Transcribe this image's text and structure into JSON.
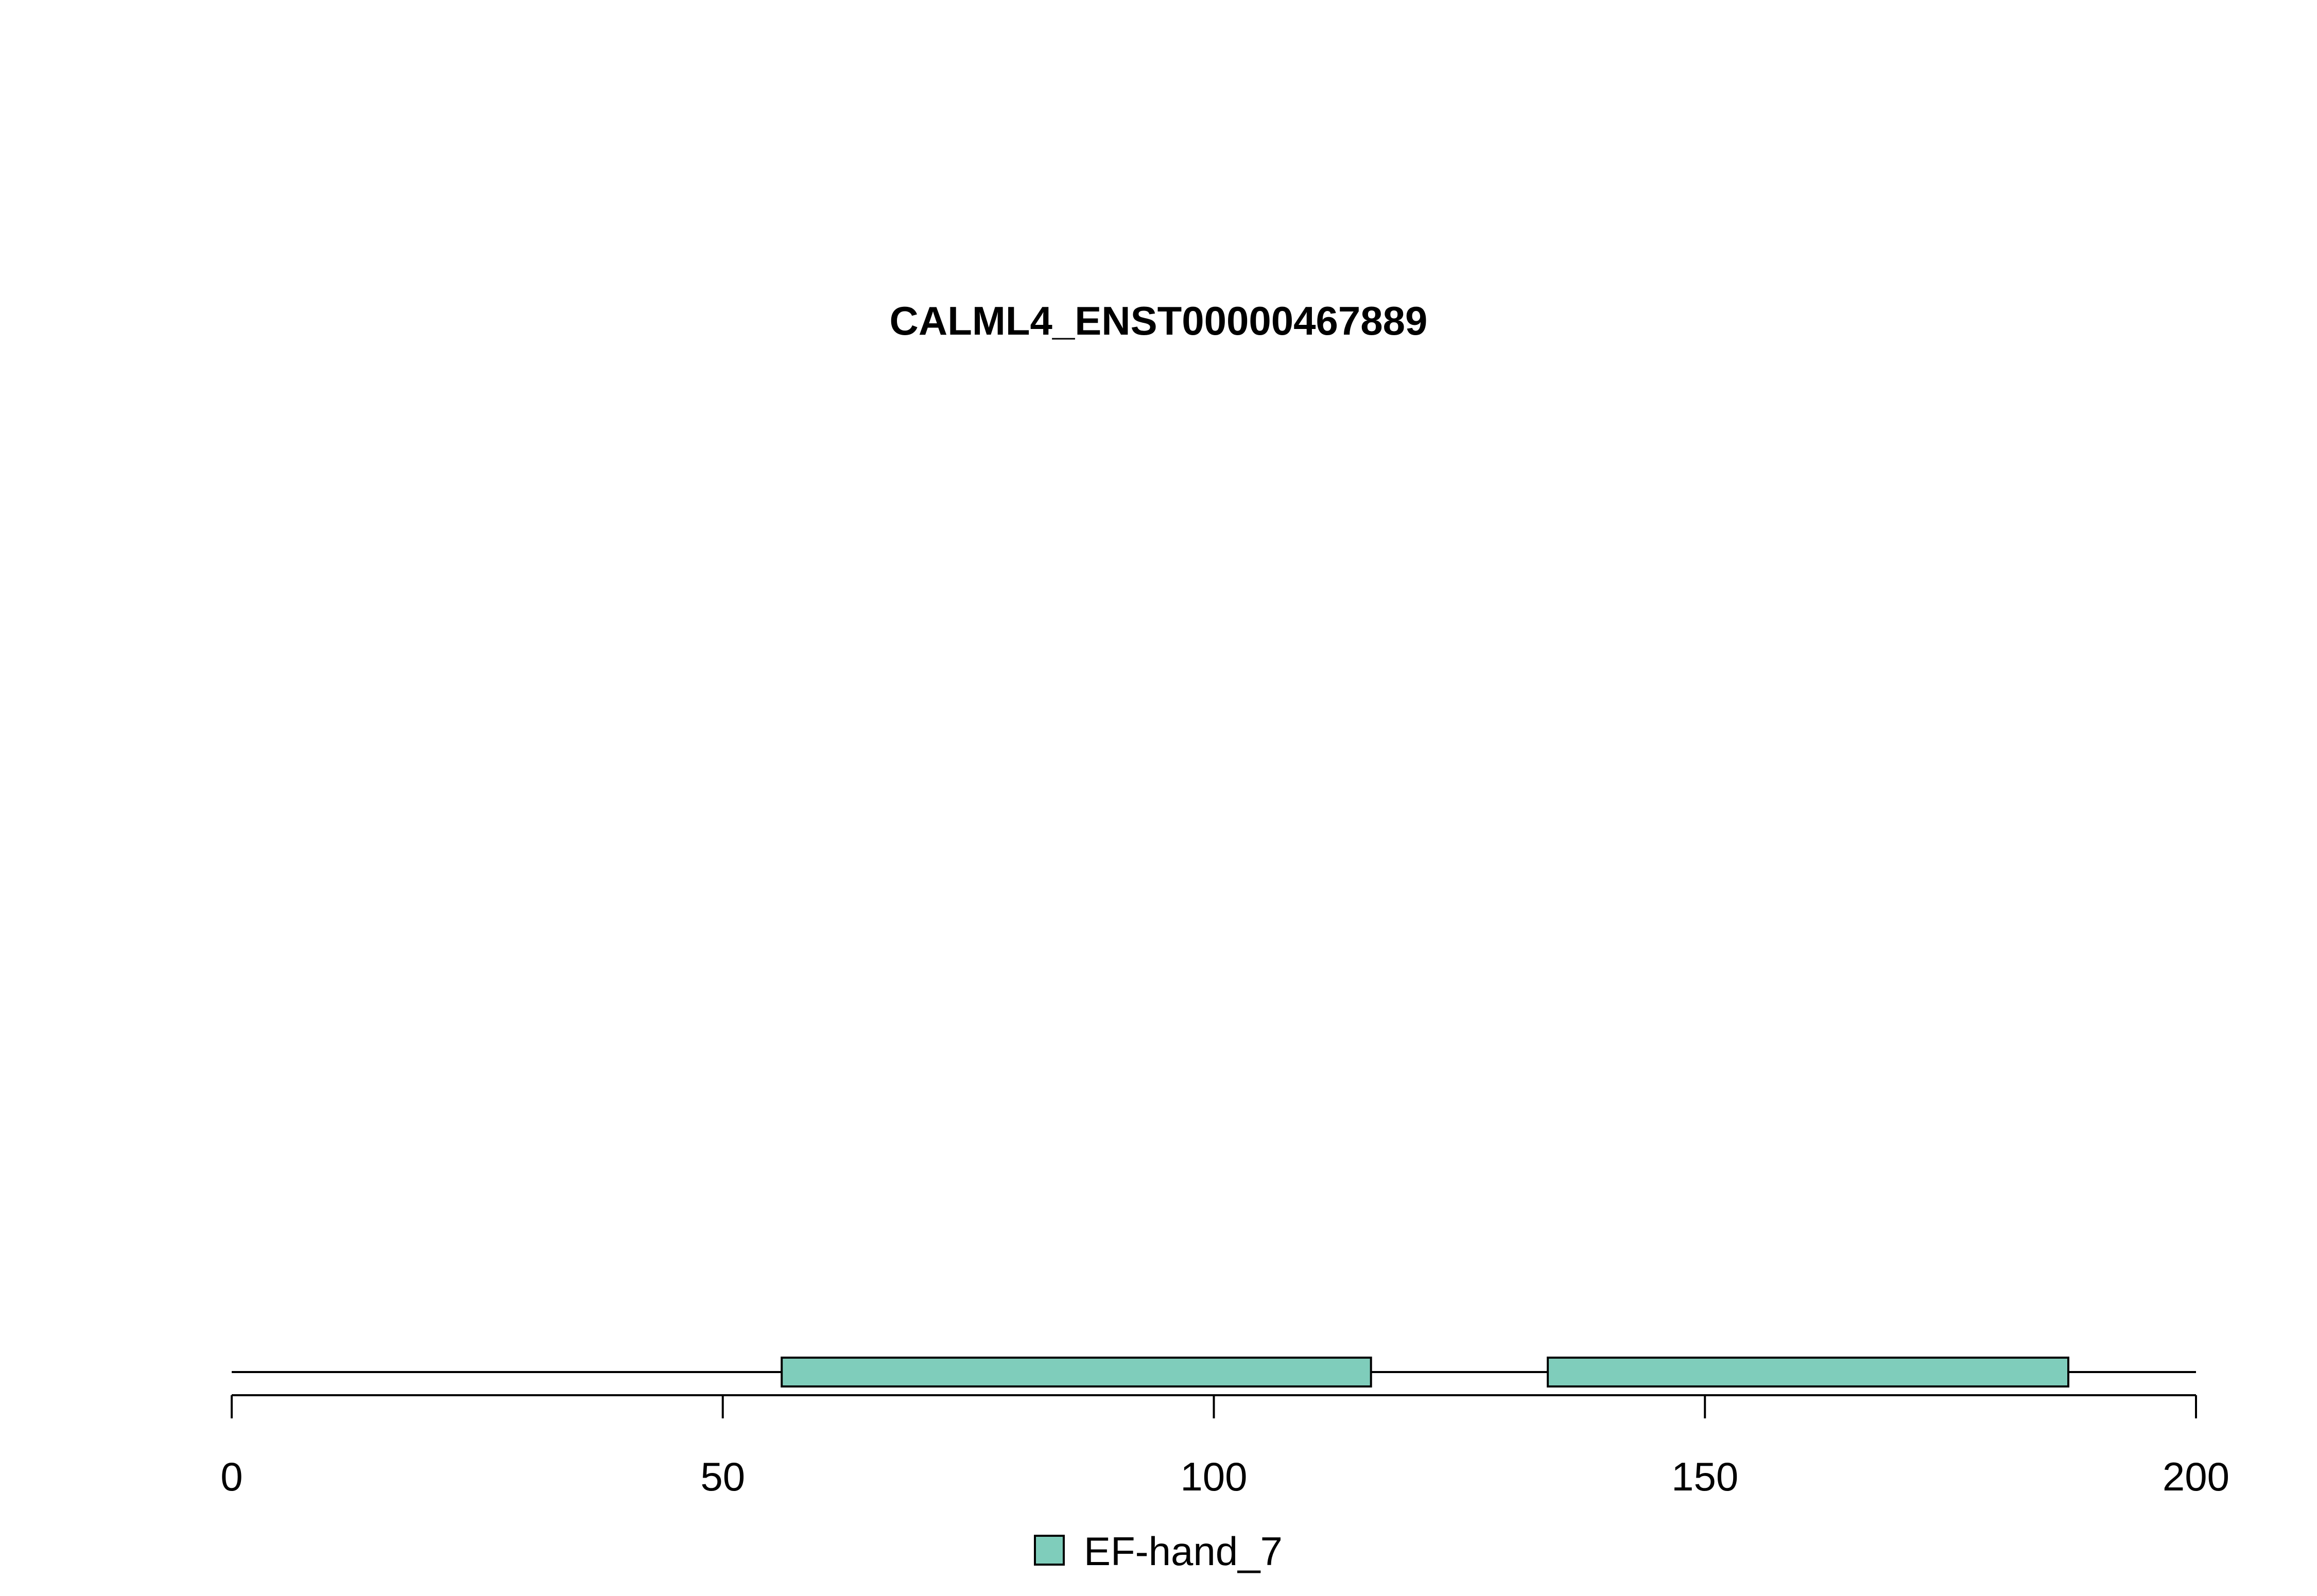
{
  "chart_data": {
    "type": "bar",
    "title": "CALML4_ENST00000467889",
    "xlabel": "",
    "ylabel": "",
    "xlim": [
      0,
      200
    ],
    "x_ticks": [
      0,
      50,
      100,
      150,
      200
    ],
    "x_tick_labels": [
      "0",
      "50",
      "100",
      "150",
      "200"
    ],
    "protein_length": 200,
    "domains": [
      {
        "name": "EF-hand_7",
        "start": 56,
        "end": 116
      },
      {
        "name": "EF-hand_7",
        "start": 134,
        "end": 187
      }
    ],
    "legend": [
      {
        "label": "EF-hand_7",
        "color": "#7fcdbb"
      }
    ],
    "legend_position": "bottom-center",
    "grid": false
  },
  "colors": {
    "domain_fill": "#7fcdbb",
    "stroke": "#000000",
    "background": "#ffffff"
  }
}
